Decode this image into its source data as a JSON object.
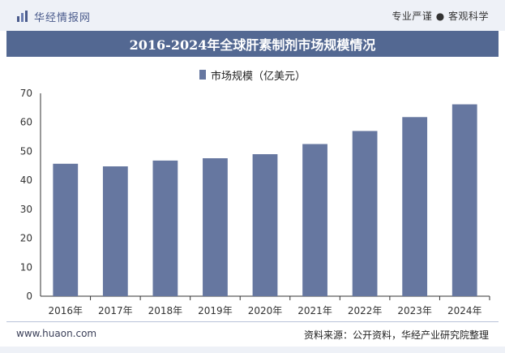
{
  "header": {
    "logo_text": "华经情报网",
    "logo_icon": "chart-bars-icon",
    "tagline": "专业严谨 ● 客观科学"
  },
  "footer": {
    "website": "www.huaon.com",
    "source": "资料来源：公开资料，华经产业研究院整理"
  },
  "colors": {
    "bar": "#6677a0",
    "title_bg": "#536892",
    "header_bg": "#eef1f7"
  },
  "chart_data": {
    "type": "bar",
    "title": "2016-2024年全球肝素制剂市场规模情况",
    "categories": [
      "2016年",
      "2017年",
      "2018年",
      "2019年",
      "2020年",
      "2021年",
      "2022年",
      "2023年",
      "2024年"
    ],
    "series": [
      {
        "name": "市场规模（亿美元）",
        "values": [
          45.7,
          44.8,
          46.8,
          47.6,
          49.0,
          52.5,
          57.0,
          61.8,
          66.2
        ]
      }
    ],
    "ylim": [
      0,
      70
    ],
    "yticks": [
      0,
      10,
      20,
      30,
      40,
      50,
      60,
      70
    ],
    "xlabel": "",
    "ylabel": "",
    "grid": false,
    "legend": "top-center"
  }
}
